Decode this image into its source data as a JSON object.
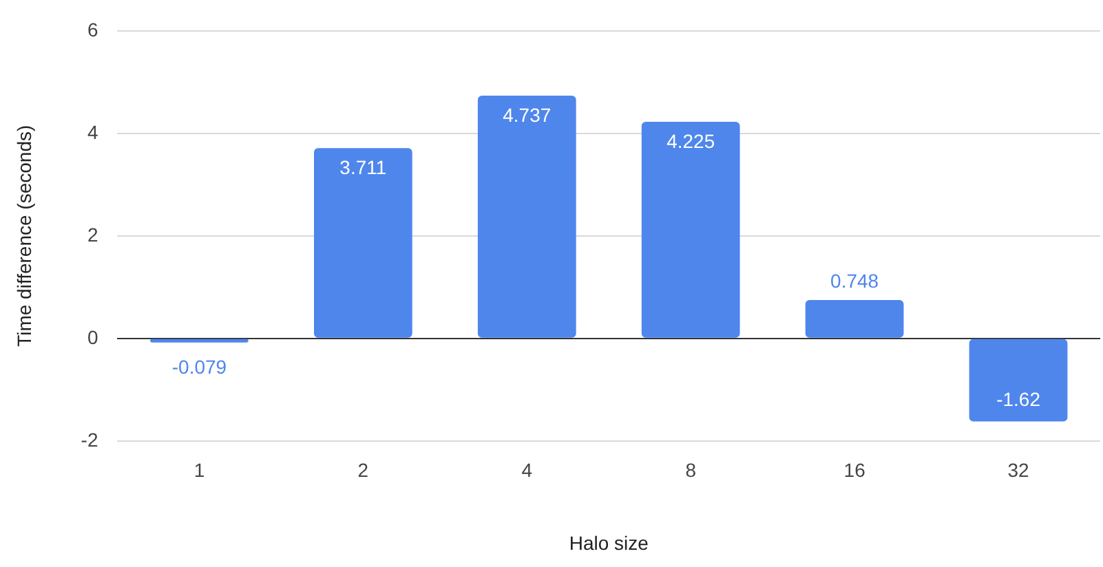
{
  "chart_data": {
    "type": "bar",
    "xlabel": "Halo size",
    "ylabel": "Time difference (seconds)",
    "categories": [
      "1",
      "2",
      "4",
      "8",
      "16",
      "32"
    ],
    "values": [
      -0.079,
      3.711,
      4.737,
      4.225,
      0.748,
      -1.62
    ],
    "color": "#4f86ec",
    "ylim": [
      -2,
      6
    ],
    "yticks": [
      -2,
      0,
      2,
      4,
      6
    ],
    "grid": "y",
    "data_labels": true
  }
}
